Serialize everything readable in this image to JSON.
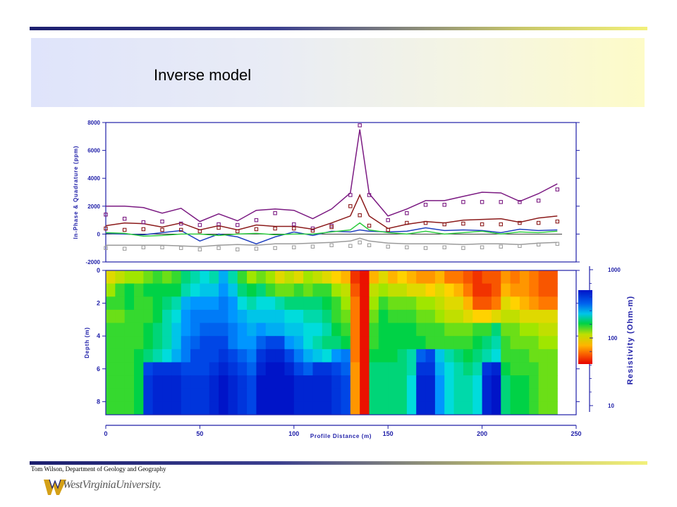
{
  "slide": {
    "title": "Inverse model",
    "credit": "Tom Wilson, Department of Geology and Geography",
    "university": "WestVirginiaUniversity.",
    "colors": {
      "rule_dark": "#1c1f6e",
      "rule_light": "#f2f07a",
      "axis": "#1f1fa8"
    }
  },
  "chart_data": [
    {
      "type": "line",
      "panel": "em-response",
      "ylabel": "In-Phase & Quadrature (ppm)",
      "ylim": [
        -2000,
        8000
      ],
      "yticks": [
        -2000,
        0,
        2000,
        4000,
        6000,
        8000
      ],
      "x": [
        0,
        10,
        20,
        30,
        40,
        50,
        60,
        70,
        80,
        90,
        100,
        110,
        120,
        130,
        135,
        140,
        150,
        160,
        170,
        180,
        190,
        200,
        210,
        220,
        230,
        240
      ],
      "series": [
        {
          "color": "#7b1a82",
          "values": [
            2000,
            2000,
            1900,
            1500,
            1850,
            900,
            1450,
            950,
            1700,
            1800,
            1700,
            1100,
            1800,
            2950,
            7500,
            2900,
            1300,
            1800,
            2400,
            2400,
            2700,
            3000,
            2950,
            2350,
            2900,
            3600
          ]
        },
        {
          "color": "#8b1a1a",
          "values": [
            600,
            800,
            750,
            500,
            800,
            300,
            600,
            300,
            650,
            550,
            550,
            350,
            800,
            1300,
            2800,
            1300,
            400,
            700,
            900,
            800,
            1000,
            1050,
            1100,
            850,
            1150,
            1300
          ]
        },
        {
          "color": "#1f3fbf",
          "values": [
            50,
            0,
            -50,
            100,
            250,
            -500,
            0,
            -200,
            -700,
            -200,
            150,
            -100,
            200,
            150,
            300,
            200,
            150,
            200,
            450,
            250,
            300,
            250,
            100,
            350,
            250,
            300
          ]
        },
        {
          "color": "#2ecc40",
          "values": [
            100,
            50,
            -150,
            -100,
            0,
            0,
            -100,
            0,
            50,
            -50,
            0,
            0,
            150,
            300,
            800,
            300,
            100,
            0,
            200,
            0,
            100,
            200,
            0,
            150,
            100,
            200
          ]
        },
        {
          "color": "#9a9a9a",
          "values": [
            -800,
            -800,
            -800,
            -800,
            -850,
            -900,
            -800,
            -750,
            -800,
            -700,
            -700,
            -650,
            -600,
            -500,
            -300,
            -500,
            -650,
            -700,
            -700,
            -700,
            -750,
            -700,
            -700,
            -750,
            -650,
            -600
          ]
        }
      ],
      "observed_points": [
        {
          "color": "#7b1a82",
          "x": [
            0,
            10,
            20,
            30,
            40,
            50,
            60,
            70,
            80,
            90,
            100,
            110,
            120,
            130,
            135,
            140,
            150,
            160,
            170,
            180,
            190,
            200,
            210,
            220,
            230,
            240
          ],
          "values": [
            1400,
            1100,
            850,
            900,
            750,
            650,
            700,
            650,
            1000,
            1500,
            700,
            400,
            600,
            2800,
            7800,
            2800,
            1000,
            1500,
            2100,
            2100,
            2300,
            2300,
            2300,
            2300,
            2400,
            3200
          ]
        },
        {
          "color": "#8b1a1a",
          "x": [
            0,
            10,
            20,
            30,
            40,
            50,
            60,
            70,
            80,
            90,
            100,
            110,
            120,
            130,
            135,
            140,
            150,
            160,
            170,
            180,
            190,
            200,
            210,
            220,
            230,
            240
          ],
          "values": [
            400,
            300,
            350,
            300,
            300,
            200,
            450,
            200,
            350,
            400,
            400,
            250,
            500,
            2000,
            1350,
            600,
            300,
            800,
            800,
            700,
            750,
            700,
            700,
            800,
            800,
            900
          ]
        },
        {
          "color": "#a0a0a0",
          "x": [
            0,
            10,
            20,
            30,
            40,
            50,
            60,
            70,
            80,
            90,
            100,
            110,
            120,
            130,
            135,
            140,
            150,
            160,
            170,
            180,
            190,
            200,
            210,
            220,
            230,
            240
          ],
          "values": [
            -1000,
            -1050,
            -950,
            -950,
            -1000,
            -1100,
            -1000,
            -1100,
            -1050,
            -1000,
            -950,
            -900,
            -800,
            -850,
            -600,
            -800,
            -900,
            -950,
            -1000,
            -950,
            -1000,
            -950,
            -900,
            -850,
            -750,
            -700
          ]
        }
      ]
    },
    {
      "type": "heatmap",
      "panel": "resistivity-section",
      "xlabel": "Profile Distance (m)",
      "ylabel": "Depth (m)",
      "xlim": [
        0,
        250
      ],
      "xticks": [
        0,
        50,
        100,
        150,
        200,
        250
      ],
      "ylim": [
        8.8,
        0
      ],
      "yticks": [
        0,
        2,
        4,
        6,
        8
      ],
      "colorbar": {
        "label": "Resistivity (Ohm-m)",
        "scale": "log",
        "range": [
          10,
          1000
        ],
        "ticks": [
          "1000",
          "100",
          "10"
        ]
      },
      "x_centers": [
        2.5,
        7.5,
        12.5,
        17.5,
        22.5,
        27.5,
        32.5,
        37.5,
        42.5,
        47.5,
        52.5,
        57.5,
        62.5,
        67.5,
        72.5,
        77.5,
        82.5,
        87.5,
        92.5,
        97.5,
        102.5,
        107.5,
        112.5,
        117.5,
        122.5,
        127.5,
        132.5,
        137.5,
        142.5,
        147.5,
        152.5,
        157.5,
        162.5,
        167.5,
        172.5,
        177.5,
        182.5,
        187.5,
        192.5,
        197.5,
        202.5,
        207.5,
        212.5,
        217.5,
        222.5,
        227.5,
        232.5,
        237.5
      ],
      "depth_centers": [
        0.4,
        1.2,
        2.0,
        2.8,
        3.6,
        4.4,
        5.2,
        6.0,
        6.8,
        7.6,
        8.4
      ],
      "values": [
        [
          2.2,
          2.3,
          2.4,
          2.4,
          2.5,
          2.6,
          2.5,
          2.6,
          2.8,
          2.9,
          3.0,
          2.9,
          3.2,
          2.9,
          2.6,
          2.4,
          2.5,
          2.4,
          2.2,
          2.3,
          2.2,
          2.4,
          2.3,
          2.2,
          2.1,
          2.0,
          1.6,
          1.5,
          2.0,
          2.2,
          2.0,
          2.1,
          2.0,
          1.9,
          1.9,
          2.0,
          1.8,
          1.8,
          1.7,
          1.6,
          1.7,
          1.7,
          1.9,
          1.8,
          1.9,
          1.8,
          1.7,
          1.7
        ],
        [
          2.4,
          2.6,
          2.7,
          2.6,
          2.7,
          2.7,
          2.7,
          2.7,
          2.9,
          3.0,
          3.1,
          3.1,
          3.3,
          3.1,
          2.8,
          2.7,
          2.8,
          2.6,
          2.5,
          2.5,
          2.6,
          2.5,
          2.6,
          2.6,
          2.4,
          2.3,
          1.7,
          1.5,
          2.3,
          2.4,
          2.3,
          2.3,
          2.2,
          2.2,
          2.1,
          2.2,
          2.1,
          2.0,
          1.8,
          1.6,
          1.6,
          1.7,
          2.0,
          1.9,
          1.9,
          1.8,
          1.7,
          1.7
        ],
        [
          2.6,
          2.6,
          2.7,
          2.6,
          2.6,
          2.7,
          2.8,
          2.9,
          3.2,
          3.3,
          3.3,
          3.3,
          3.4,
          3.3,
          3.0,
          2.9,
          3.0,
          3.0,
          2.9,
          2.8,
          2.8,
          2.8,
          2.8,
          2.7,
          2.6,
          2.4,
          1.8,
          1.5,
          2.4,
          2.6,
          2.5,
          2.5,
          2.5,
          2.4,
          2.4,
          2.3,
          2.2,
          2.2,
          2.0,
          1.7,
          1.7,
          1.8,
          2.2,
          2.1,
          2.0,
          1.9,
          1.8,
          1.8
        ],
        [
          2.5,
          2.5,
          2.6,
          2.6,
          2.6,
          2.7,
          2.9,
          3.0,
          3.3,
          3.4,
          3.4,
          3.4,
          3.4,
          3.3,
          3.2,
          3.1,
          3.1,
          3.1,
          3.1,
          3.0,
          3.0,
          2.9,
          2.9,
          2.8,
          2.6,
          2.5,
          1.8,
          1.5,
          2.5,
          2.7,
          2.6,
          2.6,
          2.6,
          2.5,
          2.5,
          2.4,
          2.3,
          2.3,
          2.2,
          2.1,
          2.1,
          2.2,
          2.3,
          2.3,
          2.2,
          2.2,
          2.2,
          2.2
        ],
        [
          2.6,
          2.6,
          2.6,
          2.6,
          2.7,
          2.8,
          2.9,
          3.1,
          3.3,
          3.4,
          3.5,
          3.5,
          3.5,
          3.4,
          3.3,
          3.2,
          3.3,
          3.2,
          3.2,
          3.1,
          3.1,
          3.0,
          3.0,
          2.9,
          2.7,
          2.6,
          1.8,
          1.5,
          2.6,
          2.7,
          2.7,
          2.7,
          2.7,
          2.6,
          2.6,
          2.6,
          2.5,
          2.5,
          2.5,
          2.6,
          2.6,
          2.8,
          2.5,
          2.5,
          2.4,
          2.4,
          2.3,
          2.3
        ],
        [
          2.6,
          2.6,
          2.6,
          2.6,
          2.7,
          2.8,
          2.9,
          3.1,
          3.4,
          3.5,
          3.6,
          3.6,
          3.6,
          3.4,
          3.3,
          3.3,
          3.5,
          3.6,
          3.6,
          3.3,
          3.2,
          3.0,
          2.9,
          2.8,
          2.8,
          2.7,
          1.8,
          1.5,
          2.6,
          2.7,
          2.7,
          2.7,
          2.7,
          2.7,
          2.6,
          2.6,
          2.6,
          2.6,
          2.6,
          2.7,
          2.8,
          2.9,
          2.6,
          2.5,
          2.5,
          2.5,
          2.4,
          2.4
        ],
        [
          2.6,
          2.6,
          2.6,
          2.7,
          2.8,
          2.9,
          3.0,
          3.2,
          3.4,
          3.6,
          3.6,
          3.6,
          3.7,
          3.6,
          3.5,
          3.4,
          3.7,
          3.8,
          3.8,
          3.6,
          3.4,
          3.2,
          3.1,
          3.0,
          3.3,
          3.4,
          1.8,
          1.5,
          2.7,
          2.7,
          2.7,
          2.8,
          2.9,
          3.5,
          3.6,
          3.1,
          2.9,
          2.8,
          2.7,
          2.8,
          2.9,
          3.0,
          2.6,
          2.6,
          2.6,
          2.5,
          2.5,
          2.5
        ],
        [
          2.6,
          2.6,
          2.6,
          2.7,
          3.6,
          3.7,
          3.7,
          3.7,
          3.6,
          3.6,
          3.6,
          3.7,
          3.8,
          3.7,
          3.6,
          3.5,
          3.8,
          3.9,
          3.9,
          3.8,
          3.6,
          3.5,
          3.7,
          3.7,
          3.6,
          3.5,
          1.9,
          1.5,
          2.8,
          2.8,
          2.8,
          2.8,
          2.9,
          3.7,
          3.7,
          3.2,
          3.0,
          2.9,
          2.8,
          2.9,
          3.7,
          3.8,
          2.7,
          2.6,
          2.6,
          2.6,
          2.5,
          2.5
        ],
        [
          2.6,
          2.6,
          2.6,
          2.7,
          3.7,
          3.8,
          3.8,
          3.8,
          3.7,
          3.7,
          3.7,
          3.8,
          3.9,
          3.8,
          3.7,
          3.6,
          3.9,
          3.9,
          3.9,
          3.9,
          3.8,
          3.8,
          3.8,
          3.8,
          3.7,
          3.6,
          1.9,
          1.5,
          2.8,
          2.8,
          2.8,
          2.8,
          3.0,
          3.8,
          3.8,
          3.3,
          3.0,
          2.9,
          2.9,
          3.0,
          3.8,
          3.9,
          2.8,
          2.7,
          2.7,
          2.6,
          2.5,
          2.5
        ],
        [
          2.6,
          2.6,
          2.6,
          2.7,
          3.7,
          3.8,
          3.8,
          3.8,
          3.7,
          3.7,
          3.7,
          3.8,
          3.9,
          3.8,
          3.7,
          3.6,
          3.9,
          3.9,
          3.9,
          3.9,
          3.8,
          3.8,
          3.8,
          3.8,
          3.7,
          3.6,
          1.9,
          1.5,
          2.8,
          2.8,
          2.8,
          2.8,
          3.0,
          3.8,
          3.8,
          3.3,
          3.0,
          2.9,
          2.9,
          3.0,
          3.8,
          3.9,
          2.8,
          2.7,
          2.7,
          2.6,
          2.5,
          2.5
        ],
        [
          2.6,
          2.6,
          2.6,
          2.7,
          3.7,
          3.8,
          3.8,
          3.8,
          3.7,
          3.7,
          3.7,
          3.8,
          3.9,
          3.8,
          3.7,
          3.6,
          3.9,
          3.9,
          3.9,
          3.9,
          3.8,
          3.8,
          3.8,
          3.8,
          3.7,
          3.6,
          1.9,
          1.5,
          2.8,
          2.8,
          2.8,
          2.8,
          3.0,
          3.8,
          3.8,
          3.3,
          3.0,
          2.9,
          2.9,
          3.0,
          3.8,
          3.9,
          2.8,
          2.7,
          2.7,
          2.6,
          2.5,
          2.5
        ]
      ]
    }
  ]
}
